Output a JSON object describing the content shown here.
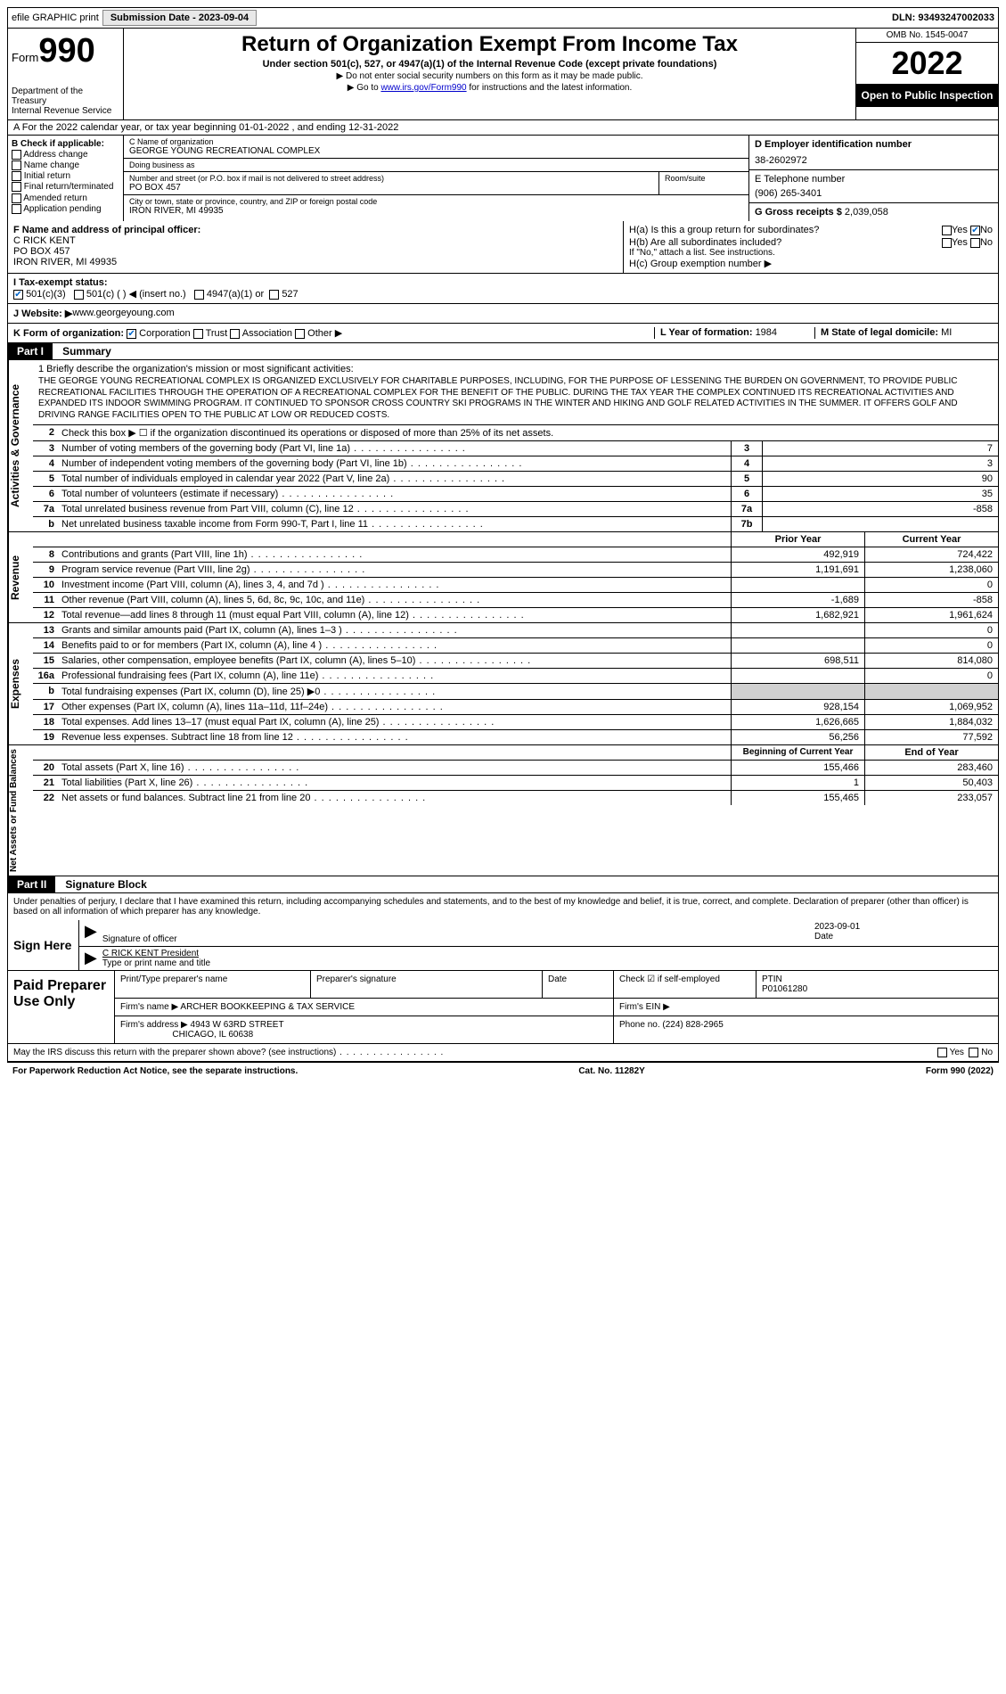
{
  "topbar": {
    "efile": "efile GRAPHIC print",
    "submission_label": "Submission Date - 2023-09-04",
    "dln": "DLN: 93493247002033"
  },
  "header": {
    "form_word": "Form",
    "form_no": "990",
    "dept": "Department of the Treasury\nInternal Revenue Service",
    "title": "Return of Organization Exempt From Income Tax",
    "subtitle": "Under section 501(c), 527, or 4947(a)(1) of the Internal Revenue Code (except private foundations)",
    "note1": "▶ Do not enter social security numbers on this form as it may be made public.",
    "note2_pre": "▶ Go to ",
    "note2_link": "www.irs.gov/Form990",
    "note2_post": " for instructions and the latest information.",
    "omb": "OMB No. 1545-0047",
    "year": "2022",
    "open": "Open to Public Inspection"
  },
  "rowA": "A For the 2022 calendar year, or tax year beginning 01-01-2022   , and ending 12-31-2022",
  "secB": {
    "title": "B Check if applicable:",
    "items": [
      "Address change",
      "Name change",
      "Initial return",
      "Final return/terminated",
      "Amended return",
      "Application pending"
    ]
  },
  "secC": {
    "name_label": "C Name of organization",
    "name": "GEORGE YOUNG RECREATIONAL COMPLEX",
    "dba_label": "Doing business as",
    "dba": "",
    "street_label": "Number and street (or P.O. box if mail is not delivered to street address)",
    "street": "PO BOX 457",
    "room_label": "Room/suite",
    "room": "",
    "city_label": "City or town, state or province, country, and ZIP or foreign postal code",
    "city": "IRON RIVER, MI  49935"
  },
  "secD": {
    "label": "D Employer identification number",
    "value": "38-2602972"
  },
  "secE": {
    "label": "E Telephone number",
    "value": "(906) 265-3401"
  },
  "secG": {
    "label": "G Gross receipts $",
    "value": "2,039,058"
  },
  "secF": {
    "label": "F  Name and address of principal officer:",
    "name": "C RICK KENT",
    "addr1": "PO BOX 457",
    "addr2": "IRON RIVER, MI  49935"
  },
  "secH": {
    "ha": "H(a)  Is this a group return for subordinates?",
    "hb": "H(b)  Are all subordinates included?",
    "hb_note": "If \"No,\" attach a list. See instructions.",
    "hc": "H(c)  Group exemption number ▶"
  },
  "rowI": {
    "label": "I    Tax-exempt status:",
    "opts": [
      "501(c)(3)",
      "501(c) (  ) ◀ (insert no.)",
      "4947(a)(1) or",
      "527"
    ]
  },
  "rowJ": {
    "label": "J   Website: ▶",
    "value": " www.georgeyoung.com"
  },
  "rowK": {
    "label": "K Form of organization:",
    "opts": [
      "Corporation",
      "Trust",
      "Association",
      "Other ▶"
    ],
    "L_label": "L Year of formation: ",
    "L_value": "1984",
    "M_label": "M State of legal domicile: ",
    "M_value": "MI"
  },
  "part1": {
    "hdr": "Part I",
    "title": "Summary"
  },
  "mission_label": "1   Briefly describe the organization's mission or most significant activities:",
  "mission": "THE GEORGE YOUNG RECREATIONAL COMPLEX IS ORGANIZED EXCLUSIVELY FOR CHARITABLE PURPOSES, INCLUDING, FOR THE PURPOSE OF LESSENING THE BURDEN ON GOVERNMENT, TO PROVIDE PUBLIC RECREATIONAL FACILITIES THROUGH THE OPERATION OF A RECREATIONAL COMPLEX FOR THE BENEFIT OF THE PUBLIC. DURING THE TAX YEAR THE COMPLEX CONTINUED ITS RECREATIONAL ACTIVITIES AND EXPANDED ITS INDOOR SWIMMING PROGRAM. IT CONTINUED TO SPONSOR CROSS COUNTRY SKI PROGRAMS IN THE WINTER AND HIKING AND GOLF RELATED ACTIVITIES IN THE SUMMER. IT OFFERS GOLF AND DRIVING RANGE FACILITIES OPEN TO THE PUBLIC AT LOW OR REDUCED COSTS.",
  "gov_rows": {
    "r2": "Check this box ▶ ☐ if the organization discontinued its operations or disposed of more than 25% of its net assets.",
    "r3": {
      "t": "Number of voting members of the governing body (Part VI, line 1a)",
      "k": "3",
      "v": "7"
    },
    "r4": {
      "t": "Number of independent voting members of the governing body (Part VI, line 1b)",
      "k": "4",
      "v": "3"
    },
    "r5": {
      "t": "Total number of individuals employed in calendar year 2022 (Part V, line 2a)",
      "k": "5",
      "v": "90"
    },
    "r6": {
      "t": "Total number of volunteers (estimate if necessary)",
      "k": "6",
      "v": "35"
    },
    "r7a": {
      "t": "Total unrelated business revenue from Part VIII, column (C), line 12",
      "k": "7a",
      "v": "-858"
    },
    "r7b": {
      "t": "Net unrelated business taxable income from Form 990-T, Part I, line 11",
      "k": "7b",
      "v": ""
    }
  },
  "tabs": {
    "gov": "Activities & Governance",
    "rev": "Revenue",
    "exp": "Expenses",
    "net": "Net Assets or Fund Balances"
  },
  "cols": {
    "prior": "Prior Year",
    "current": "Current Year",
    "beg": "Beginning of Current Year",
    "end": "End of Year"
  },
  "rev": [
    {
      "n": "8",
      "t": "Contributions and grants (Part VIII, line 1h)",
      "p": "492,919",
      "c": "724,422"
    },
    {
      "n": "9",
      "t": "Program service revenue (Part VIII, line 2g)",
      "p": "1,191,691",
      "c": "1,238,060"
    },
    {
      "n": "10",
      "t": "Investment income (Part VIII, column (A), lines 3, 4, and 7d )",
      "p": "",
      "c": "0"
    },
    {
      "n": "11",
      "t": "Other revenue (Part VIII, column (A), lines 5, 6d, 8c, 9c, 10c, and 11e)",
      "p": "-1,689",
      "c": "-858"
    },
    {
      "n": "12",
      "t": "Total revenue—add lines 8 through 11 (must equal Part VIII, column (A), line 12)",
      "p": "1,682,921",
      "c": "1,961,624"
    }
  ],
  "exp": [
    {
      "n": "13",
      "t": "Grants and similar amounts paid (Part IX, column (A), lines 1–3 )",
      "p": "",
      "c": "0"
    },
    {
      "n": "14",
      "t": "Benefits paid to or for members (Part IX, column (A), line 4 )",
      "p": "",
      "c": "0"
    },
    {
      "n": "15",
      "t": "Salaries, other compensation, employee benefits (Part IX, column (A), lines 5–10)",
      "p": "698,511",
      "c": "814,080"
    },
    {
      "n": "16a",
      "t": "Professional fundraising fees (Part IX, column (A), line 11e)",
      "p": "",
      "c": "0"
    },
    {
      "n": "b",
      "t": "Total fundraising expenses (Part IX, column (D), line 25) ▶0",
      "p": "",
      "c": "",
      "shade": true
    },
    {
      "n": "17",
      "t": "Other expenses (Part IX, column (A), lines 11a–11d, 11f–24e)",
      "p": "928,154",
      "c": "1,069,952"
    },
    {
      "n": "18",
      "t": "Total expenses. Add lines 13–17 (must equal Part IX, column (A), line 25)",
      "p": "1,626,665",
      "c": "1,884,032"
    },
    {
      "n": "19",
      "t": "Revenue less expenses. Subtract line 18 from line 12",
      "p": "56,256",
      "c": "77,592"
    }
  ],
  "net": [
    {
      "n": "20",
      "t": "Total assets (Part X, line 16)",
      "p": "155,466",
      "c": "283,460"
    },
    {
      "n": "21",
      "t": "Total liabilities (Part X, line 26)",
      "p": "1",
      "c": "50,403"
    },
    {
      "n": "22",
      "t": "Net assets or fund balances. Subtract line 21 from line 20",
      "p": "155,465",
      "c": "233,057"
    }
  ],
  "part2": {
    "hdr": "Part II",
    "title": "Signature Block"
  },
  "sig_decl": "Under penalties of perjury, I declare that I have examined this return, including accompanying schedules and statements, and to the best of my knowledge and belief, it is true, correct, and complete. Declaration of preparer (other than officer) is based on all information of which preparer has any knowledge.",
  "sign": {
    "label": "Sign Here",
    "sig_of": "Signature of officer",
    "date_label": "Date",
    "date": "2023-09-01",
    "name": "C RICK KENT  President",
    "name_label": "Type or print name and title"
  },
  "paid": {
    "label": "Paid Preparer Use Only",
    "cols": [
      "Print/Type preparer's name",
      "Preparer's signature",
      "Date"
    ],
    "check_label": "Check ☑ if self-employed",
    "ptin_label": "PTIN",
    "ptin": "P01061280",
    "firm_name_label": "Firm's name   ▶",
    "firm_name": "ARCHER BOOKKEEPING & TAX SERVICE",
    "firm_ein_label": "Firm's EIN ▶",
    "firm_addr_label": "Firm's address ▶",
    "firm_addr1": "4943 W 63RD STREET",
    "firm_addr2": "CHICAGO, IL  60638",
    "phone_label": "Phone no. ",
    "phone": "(224) 828-2965"
  },
  "discuss": "May the IRS discuss this return with the preparer shown above? (see instructions)",
  "footer": {
    "left": "For Paperwork Reduction Act Notice, see the separate instructions.",
    "mid": "Cat. No. 11282Y",
    "right": "Form 990 (2022)"
  }
}
